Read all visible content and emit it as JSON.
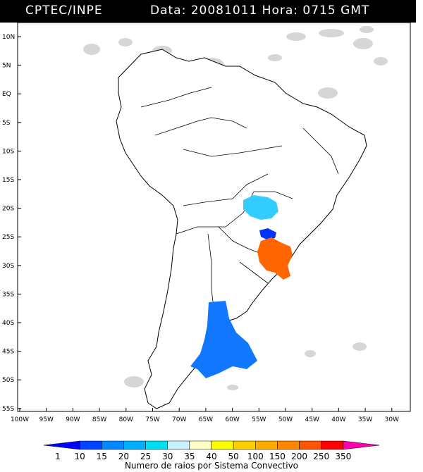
{
  "header": {
    "org": "CPTEC/INPE",
    "data_label": "Data:",
    "date": "20081011",
    "hora_label": "Hora:",
    "time": "0715 GMT"
  },
  "map": {
    "lat_labels": [
      "10N",
      "5N",
      "EQ",
      "5S",
      "10S",
      "15S",
      "20S",
      "25S",
      "30S",
      "35S",
      "40S",
      "45S",
      "50S",
      "55S"
    ],
    "lon_labels": [
      "100W",
      "95W",
      "90W",
      "85W",
      "80W",
      "75W",
      "70W",
      "65W",
      "60W",
      "55W",
      "50W",
      "45W",
      "40W",
      "35W",
      "30W"
    ],
    "land_color": "#ffffff",
    "coast_color": "#000000",
    "cloud_color": "#c8c8c8"
  },
  "convective_systems": [
    {
      "name": "paraguay-system",
      "color": "#33ccff"
    },
    {
      "name": "parana-system",
      "color": "#0033ff"
    },
    {
      "name": "rs-uruguay-system",
      "color": "#ff6600"
    },
    {
      "name": "patagonia-system",
      "color": "#1177ff"
    }
  ],
  "colorbar": {
    "ticks": [
      "1",
      "10",
      "15",
      "20",
      "25",
      "30",
      "35",
      "40",
      "50",
      "100",
      "150",
      "200",
      "250",
      "350"
    ],
    "colors": [
      "#0000ff",
      "#0044ff",
      "#0088ff",
      "#00b0ff",
      "#00e0f0",
      "#c8f0ff",
      "#ffffc8",
      "#ffff00",
      "#ffd000",
      "#ffaa00",
      "#ff8800",
      "#ff5500",
      "#ff0000",
      "#ff00aa"
    ],
    "caption": "Numero de raios por Sistema Convectivo"
  }
}
